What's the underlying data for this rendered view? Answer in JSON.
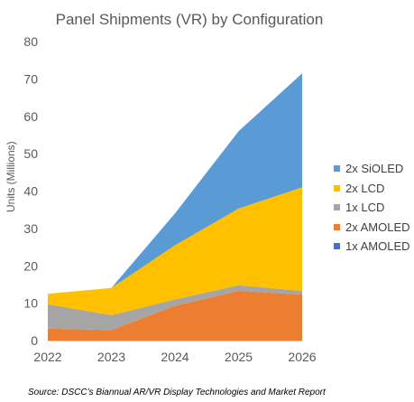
{
  "chart_data": {
    "type": "area",
    "stacked": true,
    "title": "Panel Shipments (VR) by Configuration",
    "ylabel": "Units (Millions)",
    "xlabel": "",
    "categories": [
      "2022",
      "2023",
      "2024",
      "2025",
      "2026"
    ],
    "ylim": [
      0,
      80
    ],
    "yticks": [
      0,
      10,
      20,
      30,
      40,
      50,
      60,
      70,
      80
    ],
    "grid": false,
    "legend_position": "right",
    "series": [
      {
        "name": "1x AMOLED",
        "color": "#4472C4",
        "values": [
          0,
          0,
          0,
          0,
          0
        ]
      },
      {
        "name": "2x AMOLED",
        "color": "#ED7D31",
        "values": [
          3.2,
          2.8,
          9.3,
          13.3,
          12.3
        ]
      },
      {
        "name": "1x LCD",
        "color": "#A5A5A5",
        "values": [
          6.5,
          4.0,
          1.7,
          1.5,
          1.0
        ]
      },
      {
        "name": "2x LCD",
        "color": "#FFC000",
        "values": [
          2.8,
          7.3,
          14.5,
          20.5,
          27.7
        ]
      },
      {
        "name": "2x SiOLED",
        "color": "#5B9BD5",
        "values": [
          0,
          0,
          8.5,
          20.7,
          30.5
        ]
      }
    ]
  },
  "source": "Source: DSCC’s Biannual AR/VR Display Technologies and Market Report"
}
